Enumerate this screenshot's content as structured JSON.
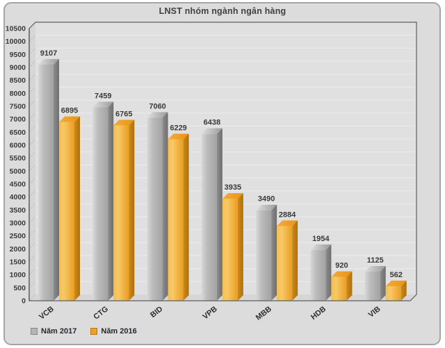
{
  "chart_data": {
    "type": "bar",
    "style": "3d-column",
    "title": "LNST nhóm ngành ngân hàng",
    "categories": [
      "VCB",
      "CTG",
      "BID",
      "VPB",
      "MBB",
      "HDB",
      "VIB"
    ],
    "series": [
      {
        "name": "Năm 2017",
        "color": "#b5b5b5",
        "values": [
          9107,
          7459,
          7060,
          6438,
          3490,
          1954,
          1125
        ]
      },
      {
        "name": "Năm 2016",
        "color": "#f0a125",
        "values": [
          6895,
          6765,
          6229,
          3935,
          2884,
          920,
          562
        ]
      }
    ],
    "xlabel": "",
    "ylabel": "",
    "ylim": [
      0,
      10500
    ],
    "ytick_step": 500,
    "grid": true,
    "value_labels": true,
    "legend_position": "bottom-left"
  }
}
